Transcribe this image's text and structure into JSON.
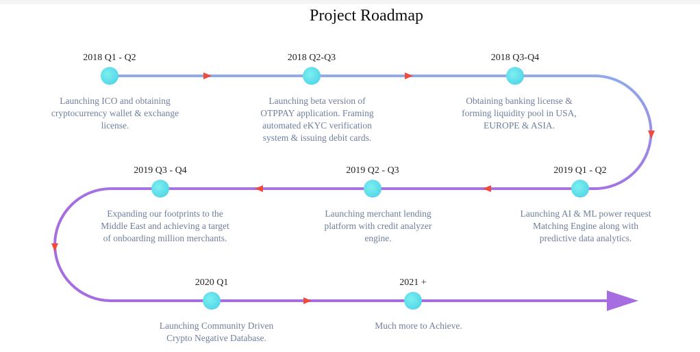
{
  "title": "Project Roadmap",
  "milestones": [
    {
      "label": "2018 Q1 - Q2",
      "description": [
        "Launching ICO and obtaining",
        "cryptocurrency wallet & exchange",
        "license."
      ]
    },
    {
      "label": "2018 Q2-Q3",
      "description": [
        "Launching beta version of",
        "OTPPAY application. Framing",
        "automated eKYC verification",
        "system & issuing debit cards."
      ]
    },
    {
      "label": "2018 Q3-Q4",
      "description": [
        "Obtaining banking license &",
        "forming liquidity pool in USA,",
        "EUROPE & ASIA."
      ]
    },
    {
      "label": "2019 Q1 - Q2",
      "description": [
        "Launching AI & ML power request",
        "Matching Engine along with",
        "predictive data analytics."
      ]
    },
    {
      "label": "2019 Q2 - Q3",
      "description": [
        "Launching merchant lending",
        "platform with credit analyzer",
        "engine."
      ]
    },
    {
      "label": "2019 Q3 - Q4",
      "description": [
        "Expanding our footprints to the",
        "Middle East and achieving a target",
        "of onboarding million merchants."
      ]
    },
    {
      "label": "2020 Q1",
      "description": [
        "Launching Community Driven",
        "Crypto Negative Database."
      ]
    },
    {
      "label": "2021 +",
      "description": [
        "Much more to Achieve."
      ]
    }
  ]
}
